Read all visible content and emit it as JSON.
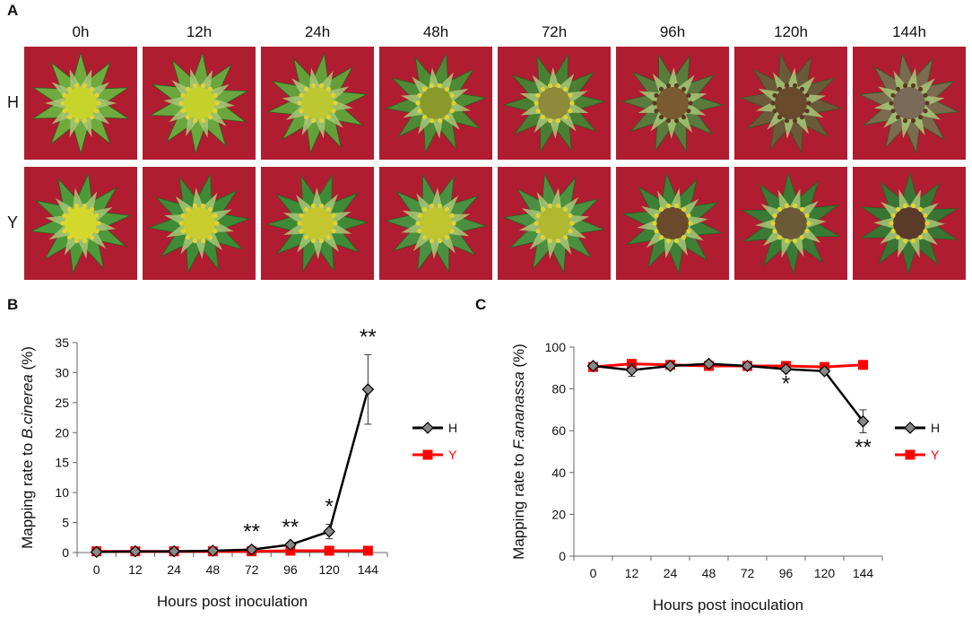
{
  "panels": {
    "a": "A",
    "b": "B",
    "c": "C"
  },
  "photo_grid": {
    "time_labels": [
      "0h",
      "12h",
      "24h",
      "48h",
      "72h",
      "96h",
      "120h",
      "144h"
    ],
    "rows": [
      {
        "label": "H",
        "center_color": [
          "#c8d42a",
          "#c4d02c",
          "#bcc832",
          "#8a9a2a",
          "#8f8a3a",
          "#7a5a30",
          "#6a4a2c",
          "#7a6a5a"
        ],
        "petal_color": [
          "#6faa3c",
          "#6aa63c",
          "#64a03a",
          "#4e8a34",
          "#4a7e32",
          "#5a7a3e",
          "#6a5a3a",
          "#7a6a4e"
        ]
      },
      {
        "label": "Y",
        "center_color": [
          "#d4d82a",
          "#c8cc2c",
          "#c4c82e",
          "#c0c42e",
          "#b0b830",
          "#6a4a2a",
          "#6a5a38",
          "#5a3a28"
        ],
        "petal_color": [
          "#4e9a3a",
          "#3e8a36",
          "#3e8a36",
          "#4a9040",
          "#4a9040",
          "#3e8036",
          "#3a7a34",
          "#3a7434"
        ]
      }
    ]
  },
  "chart_data": [
    {
      "type": "line",
      "panel": "B",
      "categories": [
        "0",
        "12",
        "24",
        "48",
        "72",
        "96",
        "120",
        "144"
      ],
      "ylabel_prefix": "Mapping rate to ",
      "ylabel_italic": "B.cinerea",
      "ylabel_suffix": " (%)",
      "xlabel": "Hours post inoculation",
      "ylim": [
        0,
        35
      ],
      "yticks": [
        "0",
        "5",
        "10",
        "15",
        "20",
        "25",
        "30",
        "35"
      ],
      "series": [
        {
          "name": "H",
          "color": "#000000",
          "marker": "diamond",
          "values": [
            0.1,
            0.2,
            0.2,
            0.3,
            0.5,
            1.3,
            3.5,
            27.2
          ],
          "errors": [
            0.05,
            0.05,
            0.05,
            0.05,
            0.2,
            0.4,
            1.2,
            5.8
          ]
        },
        {
          "name": "Y",
          "color": "#ff0000",
          "marker": "square",
          "values": [
            0.2,
            0.2,
            0.2,
            0.2,
            0.2,
            0.3,
            0.3,
            0.3
          ],
          "errors": [
            0,
            0,
            0,
            0,
            0,
            0,
            0,
            0
          ]
        }
      ],
      "annotations": [
        {
          "index": 4,
          "text": "**",
          "pos": "above",
          "value": 0.5
        },
        {
          "index": 5,
          "text": "**",
          "pos": "above",
          "value": 1.3
        },
        {
          "index": 6,
          "text": "*",
          "pos": "above",
          "value": 4.7
        },
        {
          "index": 7,
          "text": "**",
          "pos": "above",
          "value": 33
        }
      ],
      "legend_position": "right"
    },
    {
      "type": "line",
      "panel": "C",
      "categories": [
        "0",
        "12",
        "24",
        "48",
        "72",
        "96",
        "120",
        "144"
      ],
      "ylabel_prefix": "Mapping rate to ",
      "ylabel_italic": "F.ananassa",
      "ylabel_suffix": " (%)",
      "xlabel": "Hours post inoculation",
      "ylim": [
        0,
        100
      ],
      "yticks": [
        "0",
        "20",
        "40",
        "60",
        "80",
        "100"
      ],
      "series": [
        {
          "name": "H",
          "color": "#000000",
          "marker": "diamond",
          "values": [
            91,
            89,
            91,
            92,
            91,
            89.5,
            88.5,
            64.5
          ],
          "errors": [
            1,
            3,
            1,
            1,
            1,
            1,
            1,
            5.5
          ]
        },
        {
          "name": "Y",
          "color": "#ff0000",
          "marker": "square",
          "values": [
            90.5,
            92,
            91.5,
            91,
            91,
            91,
            90.5,
            91.5
          ],
          "errors": [
            0,
            0,
            0,
            0,
            0,
            0,
            0,
            0
          ]
        }
      ],
      "annotations": [
        {
          "index": 5,
          "text": "*",
          "pos": "below",
          "value": 89.5
        },
        {
          "index": 7,
          "text": "**",
          "pos": "below",
          "value": 59
        }
      ],
      "legend_position": "right"
    }
  ]
}
